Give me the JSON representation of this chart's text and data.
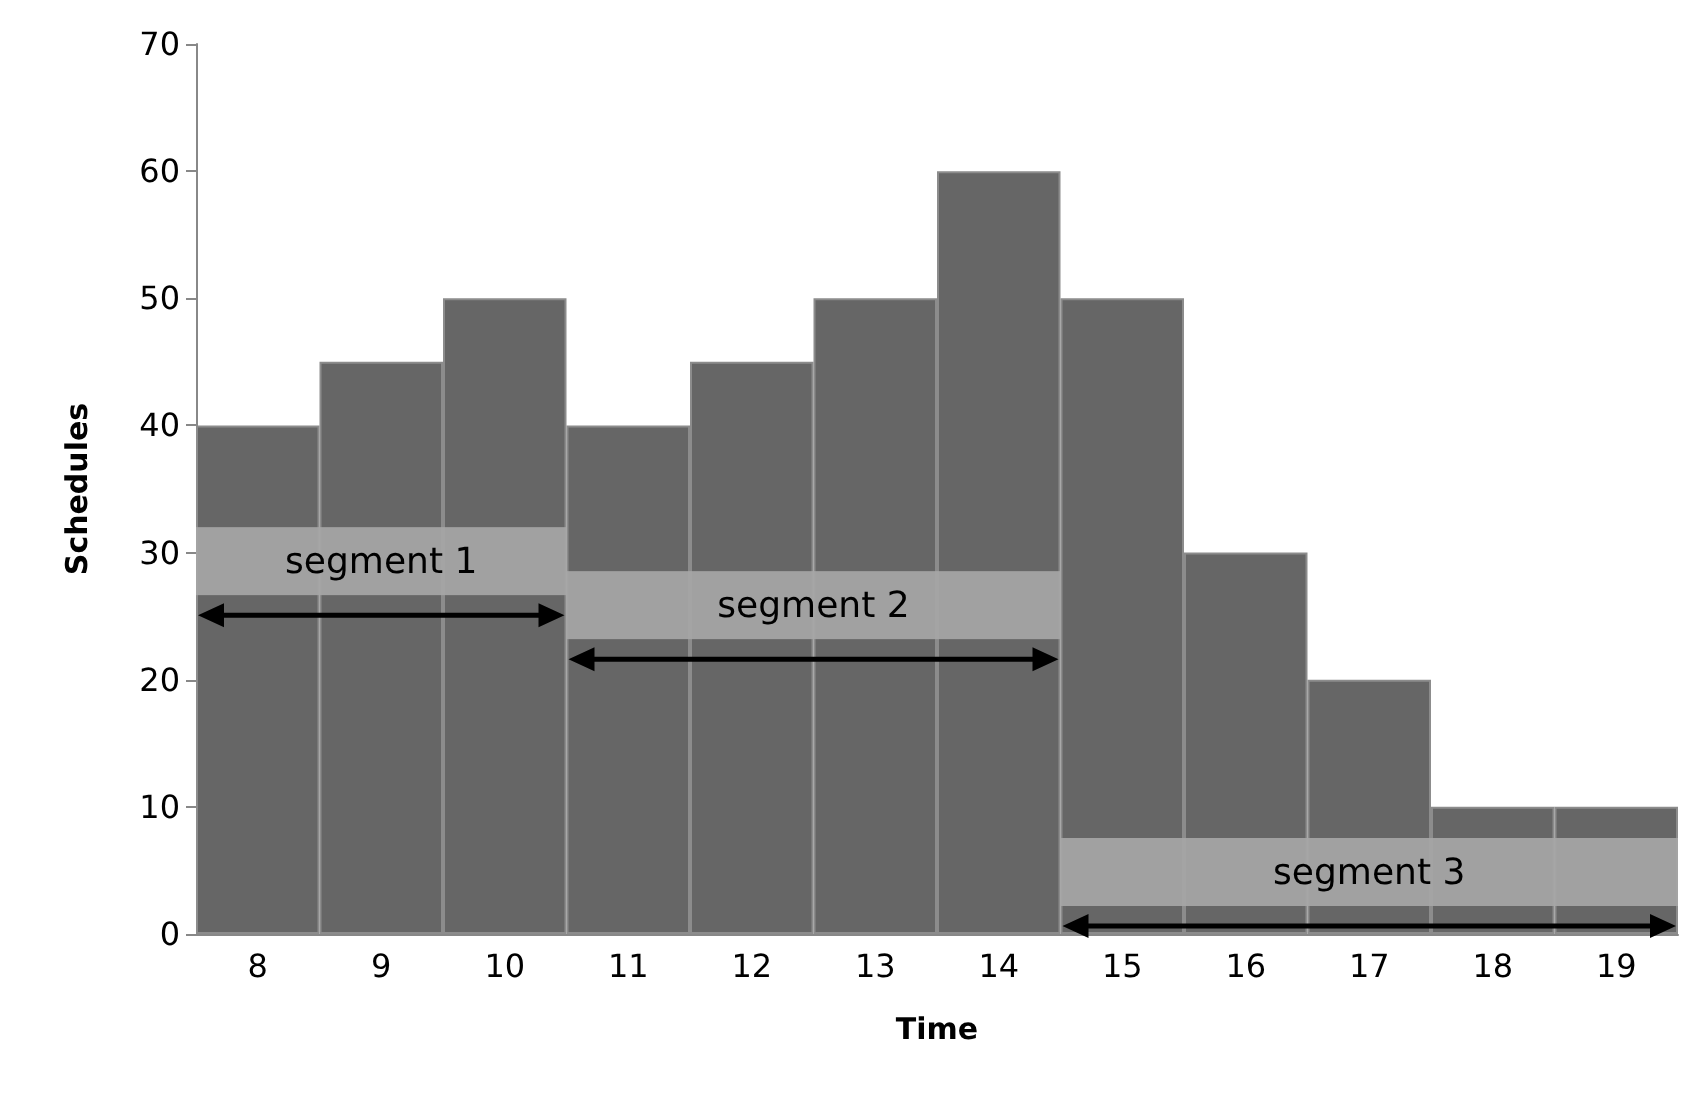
{
  "chart_data": {
    "type": "bar",
    "xlabel": "Time",
    "ylabel": "Schedules",
    "categories": [
      "8",
      "9",
      "10",
      "11",
      "12",
      "13",
      "14",
      "15",
      "16",
      "17",
      "18",
      "19"
    ],
    "values": [
      40,
      45,
      50,
      40,
      45,
      50,
      60,
      50,
      30,
      20,
      10,
      10
    ],
    "color": "#666666",
    "ylim": [
      0,
      70
    ],
    "yticks": [
      0,
      10,
      20,
      30,
      40,
      50,
      60,
      70
    ],
    "grid": false,
    "bands": [
      {
        "axis": "x",
        "from": "8",
        "to": "10",
        "label": "segment 1",
        "color": "#a6a6a6"
      },
      {
        "axis": "x",
        "from": "11",
        "to": "14",
        "label": "segment 2",
        "color": "#a6a6a6"
      },
      {
        "axis": "x",
        "from": "15",
        "to": "19",
        "label": "segment 3",
        "color": "#a6a6a6"
      }
    ]
  }
}
